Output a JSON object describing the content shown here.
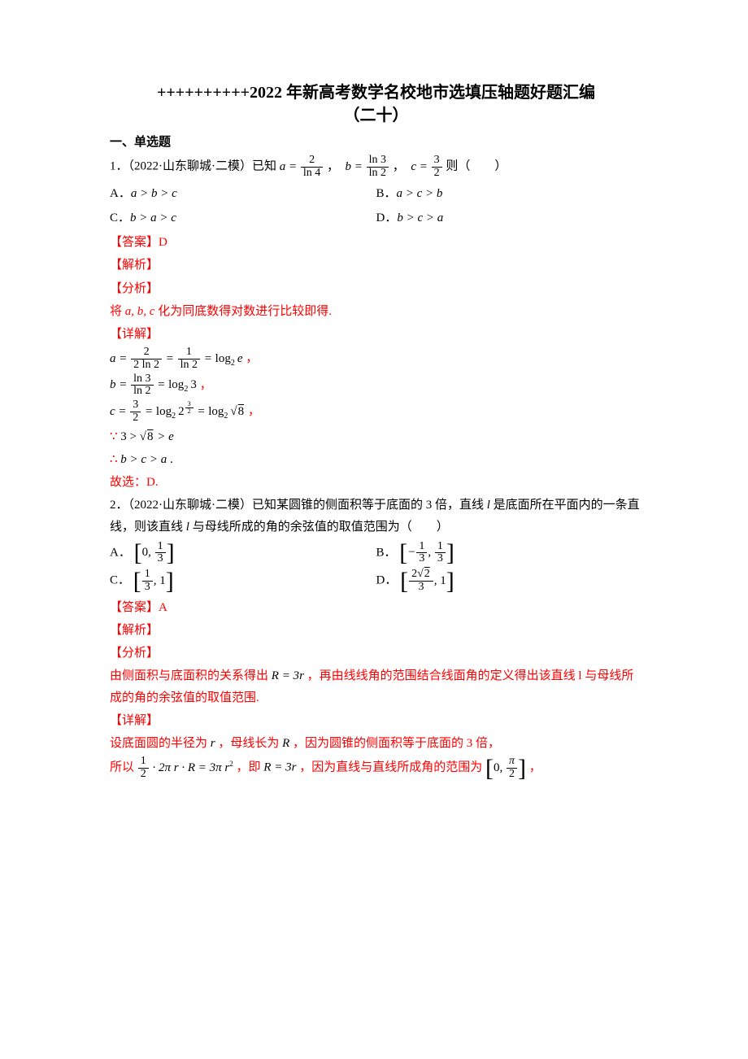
{
  "title_l1": "++++++++++2022 年新高考数学名校地市选填压轴题好题汇编",
  "title_l2": "（二十）",
  "section1": "一、单选题",
  "q1_stem_before": "1．（2022·山东聊城·二模）已知",
  "q1_a_eq": "a",
  "q1_a_num": "2",
  "q1_a_den": "ln 4",
  "q1_b_eq": "b",
  "q1_b_num": "ln 3",
  "q1_b_den": "ln 2",
  "q1_c_eq": "c",
  "q1_c_num": "3",
  "q1_c_den": "2",
  "q1_tail": "则（　　）",
  "q1_A_label": "A．",
  "q1_A_text": "a > b > c",
  "q1_B_label": "B．",
  "q1_B_text": "a > c > b",
  "q1_C_label": "C．",
  "q1_C_text": "b > a > c",
  "q1_D_label": "D．",
  "q1_D_text": "b > c > a",
  "ans_lbl": "【答案】",
  "q1_ans": "D",
  "jiexi": "【解析】",
  "fenxi": "【分析】",
  "q1_fenxi_text": "将 a, b, c 化为同底数得对数进行比较即得.",
  "xiangjie": "【详解】",
  "q1_step_a_num": "2",
  "q1_step_a_den": "2 ln 2",
  "q1_step_a2_num": "1",
  "q1_step_a2_den": "ln 2",
  "q1_step_a_res": "log",
  "q1_step_a_base": "2",
  "q1_step_a_arg": "e",
  "q1_step_b_num": "ln 3",
  "q1_step_b_den": "ln 2",
  "q1_step_b_res_arg": "3",
  "q1_step_c_num": "3",
  "q1_step_c_den": "2",
  "q1_step_c_exp_num": "3",
  "q1_step_c_exp_den": "2",
  "q1_step_c_sqrt": "8",
  "q1_ineq1_pre": "∵ ",
  "q1_ineq1_a": "3 > ",
  "q1_ineq1_b": "8",
  "q1_ineq1_c": " > e",
  "q1_ineq2": "∴ b > c > a .",
  "q1_concl": "故选：D.",
  "q2_stem": "2．（2022·山东聊城·二模）已知某圆锥的侧面积等于底面的 3 倍，直线 l 是底面所在平面内的一条直线，则该直线 l 与母线所成的角的余弦值的取值范围为（　　）",
  "q2_A_label": "A．",
  "q2_A_a": "0",
  "q2_A_b_num": "1",
  "q2_A_b_den": "3",
  "q2_B_label": "B．",
  "q2_B_a_num": "1",
  "q2_B_a_den": "3",
  "q2_B_b_num": "1",
  "q2_B_b_den": "3",
  "q2_C_label": "C．",
  "q2_C_a_num": "1",
  "q2_C_a_den": "3",
  "q2_C_b": "1",
  "q2_D_label": "D．",
  "q2_D_a_num": "2",
  "q2_D_a_sqrt": "2",
  "q2_D_a_den": "3",
  "q2_D_b": "1",
  "q2_ans": "A",
  "q2_fenxi_text_1": "由侧面积与底面积的关系得出 ",
  "q2_fenxi_rel": "R = 3r",
  "q2_fenxi_text_2": " ，再由线线角的范围结合线面角的定义得出该直线 l 与母线所成的角的余弦值的取值范围.",
  "q2_det_1": "设底面圆的半径为 r ，母线长为 R ，因为圆锥的侧面积等于底面的 3 倍，",
  "q2_det_2a": "所以",
  "q2_det_frac_num": "1",
  "q2_det_frac_den": "2",
  "q2_det_2b": "· 2πr · R = 3πr",
  "q2_det_sq": "2",
  "q2_det_2c": " ，即 ",
  "q2_det_rel": "R = 3r",
  "q2_det_2d": " ，因为直线与直线所成角的范围为",
  "q2_det_int_a": "0",
  "q2_det_int_b_num": "π",
  "q2_det_int_b_den": "2",
  "comma": "，",
  "period": "。",
  "comma2": "，"
}
